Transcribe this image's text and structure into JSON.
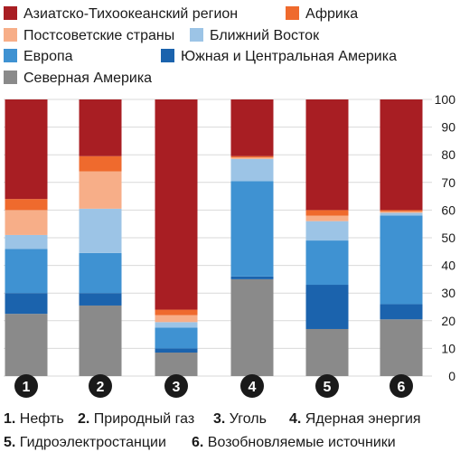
{
  "chart_data": {
    "type": "bar",
    "stacked": true,
    "ylim": [
      0,
      100
    ],
    "y_ticks": [
      "0",
      "10",
      "20",
      "30",
      "40",
      "50",
      "60",
      "70",
      "80",
      "90",
      "100"
    ],
    "grid": true,
    "legend_position": "top",
    "categories": [
      "1",
      "2",
      "3",
      "4",
      "5",
      "6"
    ],
    "series": [
      {
        "name": "Северная Америка",
        "color": "#8a8a8a",
        "values": [
          22.5,
          25.5,
          8.5,
          35,
          17,
          20.5
        ]
      },
      {
        "name": "Южная и Центральная Америка",
        "color": "#1b63ad",
        "values": [
          7.5,
          4.5,
          1.5,
          1,
          16,
          5.5
        ]
      },
      {
        "name": "Европа",
        "color": "#3f92d2",
        "values": [
          16,
          14.5,
          7.5,
          34.5,
          16,
          32
        ]
      },
      {
        "name": "Ближний Восток",
        "color": "#9cc4e6",
        "values": [
          5,
          16,
          2,
          8,
          7,
          1
        ]
      },
      {
        "name": "Постсоветские страны",
        "color": "#f7ae88",
        "values": [
          9,
          13.5,
          2.5,
          0.5,
          2,
          0.5
        ]
      },
      {
        "name": "Африка",
        "color": "#ef6a2d",
        "values": [
          4,
          5.5,
          2,
          0.5,
          2,
          0.5
        ]
      },
      {
        "name": "Азиатско-Тихоокеанский регион",
        "color": "#a81e23",
        "values": [
          36,
          20.5,
          76,
          20.5,
          40,
          40
        ]
      }
    ]
  },
  "legend": {
    "row1": [
      {
        "label": "Азиатско-Тихоокеанский регион",
        "color": "#a81e23"
      },
      {
        "label": "Африка",
        "color": "#ef6a2d"
      }
    ],
    "row2": [
      {
        "label": "Постсоветские страны",
        "color": "#f7ae88"
      },
      {
        "label": "Ближний Восток",
        "color": "#9cc4e6"
      }
    ],
    "row3": [
      {
        "label": "Европа",
        "color": "#3f92d2"
      },
      {
        "label": "Южная и Центральная Америка",
        "color": "#1b63ad"
      }
    ],
    "row4": [
      {
        "label": "Северная Америка",
        "color": "#8a8a8a"
      }
    ]
  },
  "footnote": {
    "line1": [
      {
        "num": "1.",
        "label": "Нефть"
      },
      {
        "num": "2.",
        "label": "Природный газ"
      },
      {
        "num": "3.",
        "label": "Уголь"
      },
      {
        "num": "4.",
        "label": "Ядерная энергия"
      }
    ],
    "line2": [
      {
        "num": "5.",
        "label": "Гидроэлектростанции"
      },
      {
        "num": "6.",
        "label": "Возобновляемые источники"
      }
    ]
  },
  "colors": {
    "axis_text": "#1a1a1a",
    "grid": "#d9d9d9",
    "category_circle": "#1a1a1a",
    "category_text": "#ffffff"
  }
}
